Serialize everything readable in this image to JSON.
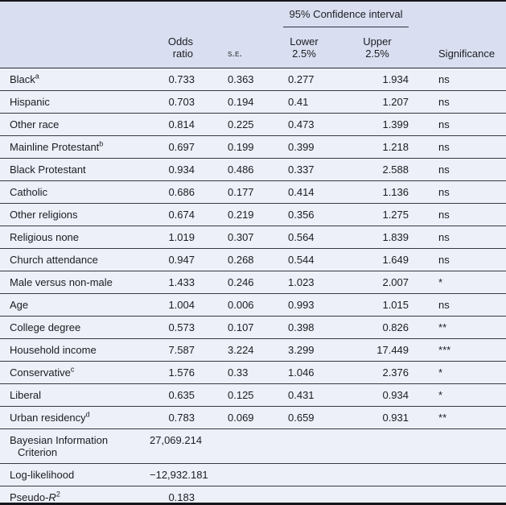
{
  "colors": {
    "header_bg": "#d9dff0",
    "row_bg": "#edf0f8",
    "rule": "#383842",
    "frame": "#16161c"
  },
  "table": {
    "ci_header": "95% Confidence interval",
    "columns": {
      "odds_line1": "Odds",
      "odds_line2": "ratio",
      "se": "s.e.",
      "lower_line1": "Lower",
      "lower_line2": "2.5%",
      "upper_line1": "Upper",
      "upper_line2": "2.5%",
      "significance": "Significance"
    },
    "rows": [
      {
        "label": "Black",
        "sup": "a",
        "odds": "0.733",
        "se": "0.363",
        "lower": "0.277",
        "upper": "1.934",
        "sig": "ns"
      },
      {
        "label": "Hispanic",
        "odds": "0.703",
        "se": "0.194",
        "lower": "0.41",
        "upper": "1.207",
        "sig": "ns"
      },
      {
        "label": "Other race",
        "odds": "0.814",
        "se": "0.225",
        "lower": "0.473",
        "upper": "1.399",
        "sig": "ns"
      },
      {
        "label": "Mainline Protestant",
        "sup": "b",
        "odds": "0.697",
        "se": "0.199",
        "lower": "0.399",
        "upper": "1.218",
        "sig": "ns"
      },
      {
        "label": "Black Protestant",
        "odds": "0.934",
        "se": "0.486",
        "lower": "0.337",
        "upper": "2.588",
        "sig": "ns"
      },
      {
        "label": "Catholic",
        "odds": "0.686",
        "se": "0.177",
        "lower": "0.414",
        "upper": "1.136",
        "sig": "ns"
      },
      {
        "label": "Other religions",
        "odds": "0.674",
        "se": "0.219",
        "lower": "0.356",
        "upper": "1.275",
        "sig": "ns"
      },
      {
        "label": "Religious none",
        "odds": "1.019",
        "se": "0.307",
        "lower": "0.564",
        "upper": "1.839",
        "sig": "ns"
      },
      {
        "label": "Church attendance",
        "odds": "0.947",
        "se": "0.268",
        "lower": "0.544",
        "upper": "1.649",
        "sig": "ns"
      },
      {
        "label": "Male versus non-male",
        "odds": "1.433",
        "se": "0.246",
        "lower": "1.023",
        "upper": "2.007",
        "sig": "*"
      },
      {
        "label": "Age",
        "odds": "1.004",
        "se": "0.006",
        "lower": "0.993",
        "upper": "1.015",
        "sig": "ns"
      },
      {
        "label": "College degree",
        "odds": "0.573",
        "se": "0.107",
        "lower": "0.398",
        "upper": "0.826",
        "sig": "**"
      },
      {
        "label": "Household income",
        "odds": "7.587",
        "se": "3.224",
        "lower": "3.299",
        "upper": "17.449",
        "sig": "***"
      },
      {
        "label": "Conservative",
        "sup": "c",
        "odds": "1.576",
        "se": "0.33",
        "lower": "1.046",
        "upper": "2.376",
        "sig": "*"
      },
      {
        "label": "Liberal",
        "odds": "0.635",
        "se": "0.125",
        "lower": "0.431",
        "upper": "0.934",
        "sig": "*"
      },
      {
        "label": "Urban residency",
        "sup": "d",
        "odds": "0.783",
        "se": "0.069",
        "lower": "0.659",
        "upper": "0.931",
        "sig": "**"
      }
    ],
    "footer": {
      "bic": {
        "label_line1": "Bayesian Information",
        "label_line2": "Criterion",
        "value": "27,069.214"
      },
      "loglik": {
        "label": "Log-likelihood",
        "value": "−12,932.181"
      },
      "pseudo_r2": {
        "label_prefix": "Pseudo-",
        "label_italic": "R",
        "label_sup": "2",
        "value": "0.183"
      }
    }
  }
}
